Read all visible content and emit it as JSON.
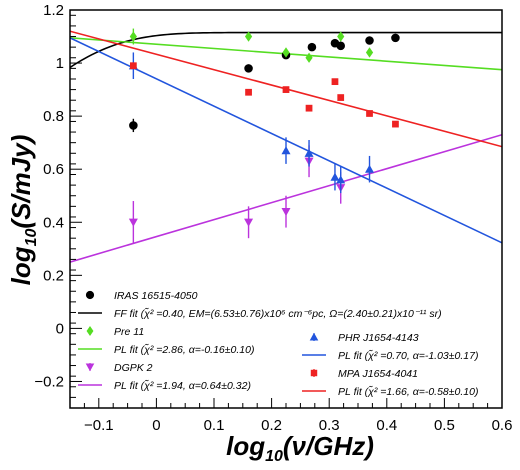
{
  "chart_data": {
    "type": "scatter",
    "xlabel_main": "log",
    "xlabel_sub": "10",
    "xlabel_rest": "(ν/GHz)",
    "ylabel_main": "log",
    "ylabel_sub": "10",
    "ylabel_rest": "(S/mJy)",
    "xlim": [
      -0.15,
      0.6
    ],
    "ylim": [
      -0.3,
      1.2
    ],
    "x_ticks": [
      -0.1,
      0,
      0.1,
      0.2,
      0.3,
      0.4,
      0.5,
      0.6
    ],
    "x_tick_labels": [
      "−0.1",
      "0",
      "0.1",
      "0.2",
      "0.3",
      "0.4",
      "0.5",
      "0.6"
    ],
    "y_ticks": [
      -0.2,
      0,
      0.2,
      0.4,
      0.6,
      0.8,
      1,
      1.2
    ],
    "y_tick_labels": [
      "−0.2",
      "0",
      "0.2",
      "0.4",
      "0.6",
      "0.8",
      "1",
      "1.2"
    ],
    "grid": false,
    "legend_position": "bottom",
    "series": [
      {
        "name": "IRAS 16515-4050",
        "marker": "circle",
        "color": "#000000",
        "x": [
          -0.04,
          0.16,
          0.225,
          0.27,
          0.31,
          0.32,
          0.37,
          0.415
        ],
        "y": [
          0.765,
          0.98,
          1.03,
          1.06,
          1.075,
          1.065,
          1.085,
          1.095
        ],
        "yerr": [
          0.025,
          0.008,
          0.008,
          0.008,
          0.008,
          0.008,
          0.008,
          0.008
        ],
        "fit": {
          "label": "FF fit (χ̃² =0.40, EM=(6.53±0.76)x10⁶ cm⁻⁶pc, Ω=(2.40±0.21)x10⁻¹¹ sr)",
          "kind": "freefree",
          "color": "#000000"
        }
      },
      {
        "name": "Pre 11",
        "marker": "diamond",
        "color": "#55dd22",
        "x": [
          -0.04,
          0.16,
          0.225,
          0.265,
          0.32,
          0.37
        ],
        "y": [
          1.1,
          1.1,
          1.04,
          1.02,
          1.1,
          1.04
        ],
        "yerr": [
          0.03,
          0.008,
          0.008,
          0.008,
          0.008,
          0.008
        ],
        "fit": {
          "label": "PL fit (χ̃² =2.86, α=-0.16±0.10)",
          "kind": "line",
          "slope": -0.16,
          "x0": -0.15,
          "y0": 1.095,
          "color": "#55dd22"
        }
      },
      {
        "name": "DGPK 2",
        "marker": "triangle-down",
        "color": "#bb33dd",
        "x": [
          -0.04,
          0.16,
          0.225,
          0.265,
          0.32
        ],
        "y": [
          0.4,
          0.4,
          0.44,
          0.63,
          0.53
        ],
        "yerr": [
          0.08,
          0.06,
          0.06,
          0.06,
          0.06
        ],
        "fit": {
          "label": "PL fit (χ̃² =1.94, α=0.64±0.32)",
          "kind": "line",
          "slope": 0.64,
          "x0": -0.15,
          "y0": 0.25,
          "color": "#bb33dd"
        }
      },
      {
        "name": "PHR J1654-4143",
        "marker": "triangle-up",
        "color": "#2255dd",
        "x": [
          -0.04,
          0.225,
          0.265,
          0.31,
          0.32,
          0.37
        ],
        "y": [
          0.99,
          0.67,
          0.66,
          0.57,
          0.56,
          0.6
        ],
        "yerr": [
          0.05,
          0.05,
          0.05,
          0.05,
          0.05,
          0.05
        ],
        "fit": {
          "label": "PL fit (χ̃² =0.70, α=-1.03±0.17)",
          "kind": "line",
          "slope": -1.03,
          "x0": -0.15,
          "y0": 1.095,
          "color": "#2255dd"
        }
      },
      {
        "name": "MPA J1654-4041",
        "marker": "square",
        "color": "#ee2222",
        "x": [
          -0.04,
          0.16,
          0.225,
          0.265,
          0.31,
          0.32,
          0.37,
          0.415
        ],
        "y": [
          0.99,
          0.89,
          0.9,
          0.83,
          0.93,
          0.87,
          0.81,
          0.77
        ],
        "yerr": [
          0.01,
          0.01,
          0.01,
          0.01,
          0.01,
          0.01,
          0.01,
          0.01
        ],
        "fit": {
          "label": "PL fit (χ̃² =1.66, α=-0.58±0.10)",
          "kind": "line",
          "slope": -0.58,
          "x0": -0.15,
          "y0": 1.12,
          "color": "#ee2222"
        }
      }
    ]
  }
}
